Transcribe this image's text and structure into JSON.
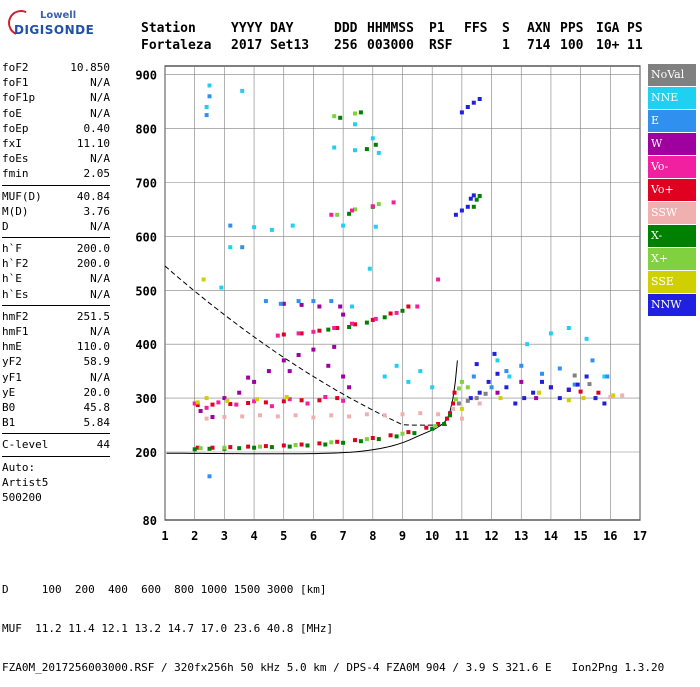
{
  "logo": {
    "line1": "Lowell",
    "line2": "DIGISONDE"
  },
  "header": {
    "row1": [
      "Station",
      "YYYY",
      "DAY",
      "DDD",
      "HHMMSS",
      "P1",
      "FFS",
      "S",
      "AXN",
      "PPS",
      "IGA",
      "PS"
    ],
    "row2": [
      "Fortaleza",
      "2017",
      "Set13",
      "256",
      "003000",
      "RSF",
      "",
      "1",
      "714",
      "100",
      "10+",
      "11"
    ]
  },
  "params": [
    {
      "k": "foF2",
      "v": "10.850"
    },
    {
      "k": "foF1",
      "v": "N/A"
    },
    {
      "k": "foF1p",
      "v": "N/A"
    },
    {
      "k": "foE",
      "v": "N/A"
    },
    {
      "k": "foEp",
      "v": "0.40"
    },
    {
      "k": "fxI",
      "v": "11.10"
    },
    {
      "k": "foEs",
      "v": "N/A"
    },
    {
      "k": "fmin",
      "v": "2.05"
    },
    {
      "sep": true
    },
    {
      "k": "MUF(D)",
      "v": "40.84"
    },
    {
      "k": "M(D)",
      "v": "3.76"
    },
    {
      "k": "D",
      "v": "N/A"
    },
    {
      "sep": true
    },
    {
      "k": "h`F",
      "v": "200.0"
    },
    {
      "k": "h`F2",
      "v": "200.0"
    },
    {
      "k": "h`E",
      "v": "N/A"
    },
    {
      "k": "h`Es",
      "v": "N/A"
    },
    {
      "sep": true
    },
    {
      "k": "hmF2",
      "v": "251.5"
    },
    {
      "k": "hmF1",
      "v": "N/A"
    },
    {
      "k": "hmE",
      "v": "110.0"
    },
    {
      "k": "yF2",
      "v": "58.9"
    },
    {
      "k": "yF1",
      "v": "N/A"
    },
    {
      "k": "yE",
      "v": "20.0"
    },
    {
      "k": "B0",
      "v": "45.8"
    },
    {
      "k": "B1",
      "v": "5.84"
    },
    {
      "sep": true
    },
    {
      "k": "C-level",
      "v": "44"
    },
    {
      "sep": true
    },
    {
      "k": "Auto:",
      "v": ""
    },
    {
      "k": "Artist5",
      "v": ""
    },
    {
      "k": "500200",
      "v": ""
    }
  ],
  "legend": [
    {
      "label": "NoVal",
      "color": "#808080"
    },
    {
      "label": "NNE",
      "color": "#20d0f0"
    },
    {
      "label": "E",
      "color": "#3090f0"
    },
    {
      "label": "W",
      "color": "#a000a0"
    },
    {
      "label": "Vo-",
      "color": "#f020a0"
    },
    {
      "label": "Vo+",
      "color": "#e00020"
    },
    {
      "label": "SSW",
      "color": "#f0b0b0"
    },
    {
      "label": "X-",
      "color": "#008000"
    },
    {
      "label": "X+",
      "color": "#80d040"
    },
    {
      "label": "SSE",
      "color": "#d0d000"
    },
    {
      "label": "NNW",
      "color": "#2020e0"
    }
  ],
  "footer": {
    "line1": "D     100  200  400  600  800 1000 1500 3000 [km]",
    "line2": "MUF  11.2 11.4 12.1 13.2 14.7 17.0 23.6 40.8 [MHz]",
    "line3": "FZA0M_2017256003000.RSF / 320fx256h 50 kHz 5.0 km / DPS-4 FZA0M 904 / 3.9 S 321.6 E   Ion2Png 1.3.20"
  },
  "chart_data": {
    "type": "scatter",
    "xlim": [
      1,
      17
    ],
    "ylim": [
      80,
      900
    ],
    "x_ticks": [
      1,
      2,
      3,
      4,
      5,
      6,
      7,
      8,
      9,
      10,
      11,
      12,
      13,
      14,
      15,
      16,
      17
    ],
    "y_ticks": [
      80,
      200,
      300,
      400,
      500,
      600,
      700,
      800,
      900
    ],
    "grid": true,
    "series": [
      {
        "name": "Vo+",
        "color": "#e00020",
        "points": [
          [
            2.1,
            208
          ],
          [
            2.6,
            208
          ],
          [
            3.2,
            209
          ],
          [
            3.8,
            210
          ],
          [
            4.4,
            211
          ],
          [
            5.0,
            212
          ],
          [
            5.6,
            214
          ],
          [
            6.2,
            216
          ],
          [
            6.8,
            219
          ],
          [
            7.4,
            222
          ],
          [
            8.0,
            226
          ],
          [
            8.6,
            231
          ],
          [
            9.2,
            237
          ],
          [
            9.8,
            245
          ],
          [
            10.2,
            252
          ],
          [
            10.5,
            262
          ],
          [
            10.6,
            272
          ],
          [
            10.7,
            290
          ],
          [
            10.75,
            310
          ],
          [
            2.1,
            287
          ],
          [
            2.6,
            288
          ],
          [
            3.2,
            289
          ],
          [
            3.8,
            291
          ],
          [
            4.4,
            292
          ],
          [
            5.0,
            294
          ],
          [
            5.6,
            296
          ],
          [
            6.2,
            296
          ],
          [
            6.8,
            300
          ],
          [
            5.0,
            418
          ],
          [
            5.6,
            420
          ],
          [
            6.2,
            425
          ],
          [
            6.8,
            430
          ],
          [
            7.4,
            437
          ],
          [
            8.0,
            445
          ],
          [
            8.6,
            457
          ],
          [
            9.2,
            470
          ],
          [
            14.0,
            320
          ],
          [
            15.0,
            312
          ],
          [
            15.6,
            310
          ]
        ]
      },
      {
        "name": "X-",
        "color": "#008000",
        "points": [
          [
            2.0,
            205
          ],
          [
            2.5,
            206
          ],
          [
            3.0,
            206
          ],
          [
            3.5,
            207
          ],
          [
            4.0,
            208
          ],
          [
            4.6,
            209
          ],
          [
            5.2,
            210
          ],
          [
            5.8,
            212
          ],
          [
            6.4,
            214
          ],
          [
            7.0,
            217
          ],
          [
            7.6,
            220
          ],
          [
            8.2,
            224
          ],
          [
            8.8,
            229
          ],
          [
            9.4,
            235
          ],
          [
            10.0,
            243
          ],
          [
            10.4,
            252
          ],
          [
            10.6,
            268
          ],
          [
            6.5,
            427
          ],
          [
            7.2,
            432
          ],
          [
            7.8,
            440
          ],
          [
            8.4,
            450
          ],
          [
            9.0,
            462
          ],
          [
            11.4,
            655
          ],
          [
            11.5,
            668
          ],
          [
            11.6,
            675
          ],
          [
            7.2,
            642
          ],
          [
            8.0,
            655
          ],
          [
            7.8,
            762
          ],
          [
            8.1,
            770
          ],
          [
            6.9,
            820
          ],
          [
            7.6,
            830
          ]
        ]
      },
      {
        "name": "X+",
        "color": "#80d040",
        "points": [
          [
            2.2,
            207
          ],
          [
            3.0,
            208
          ],
          [
            4.2,
            210
          ],
          [
            5.4,
            213
          ],
          [
            6.6,
            218
          ],
          [
            7.8,
            224
          ],
          [
            9.0,
            234
          ],
          [
            10.1,
            248
          ],
          [
            10.8,
            298
          ],
          [
            10.9,
            318
          ],
          [
            11.0,
            330
          ],
          [
            11.2,
            320
          ],
          [
            6.8,
            640
          ],
          [
            7.4,
            650
          ],
          [
            8.2,
            660
          ],
          [
            6.7,
            823
          ],
          [
            7.4,
            828
          ]
        ]
      },
      {
        "name": "Vo-",
        "color": "#f020a0",
        "points": [
          [
            2.0,
            290
          ],
          [
            2.4,
            282
          ],
          [
            2.8,
            292
          ],
          [
            3.4,
            288
          ],
          [
            4.0,
            294
          ],
          [
            4.6,
            285
          ],
          [
            5.2,
            298
          ],
          [
            5.8,
            290
          ],
          [
            6.4,
            302
          ],
          [
            7.0,
            295
          ],
          [
            4.8,
            416
          ],
          [
            5.5,
            420
          ],
          [
            6.0,
            423
          ],
          [
            6.7,
            430
          ],
          [
            7.3,
            438
          ],
          [
            8.1,
            447
          ],
          [
            8.8,
            458
          ],
          [
            9.5,
            470
          ],
          [
            10.2,
            520
          ],
          [
            6.6,
            640
          ],
          [
            7.3,
            648
          ],
          [
            8.0,
            656
          ],
          [
            8.7,
            663
          ]
        ]
      },
      {
        "name": "W",
        "color": "#a000a0",
        "points": [
          [
            2.2,
            276
          ],
          [
            2.6,
            265
          ],
          [
            3.0,
            300
          ],
          [
            3.5,
            310
          ],
          [
            4.0,
            330
          ],
          [
            4.5,
            350
          ],
          [
            5.0,
            370
          ],
          [
            5.5,
            380
          ],
          [
            6.0,
            390
          ],
          [
            6.5,
            360
          ],
          [
            7.0,
            340
          ],
          [
            7.2,
            320
          ],
          [
            5.0,
            475
          ],
          [
            5.6,
            473
          ],
          [
            6.2,
            470
          ],
          [
            6.9,
            470
          ],
          [
            7.0,
            455
          ],
          [
            3.8,
            338
          ],
          [
            5.2,
            350
          ],
          [
            6.7,
            395
          ],
          [
            12.2,
            310
          ],
          [
            13.0,
            330
          ],
          [
            13.5,
            300
          ],
          [
            14.6,
            316
          ]
        ]
      },
      {
        "name": "SSW",
        "color": "#f0b0b0",
        "points": [
          [
            2.4,
            262
          ],
          [
            3.0,
            265
          ],
          [
            3.6,
            266
          ],
          [
            4.2,
            268
          ],
          [
            4.8,
            266
          ],
          [
            5.4,
            268
          ],
          [
            6.0,
            264
          ],
          [
            6.6,
            268
          ],
          [
            7.2,
            266
          ],
          [
            7.8,
            270
          ],
          [
            8.4,
            268
          ],
          [
            9.0,
            270
          ],
          [
            9.6,
            272
          ],
          [
            10.2,
            270
          ],
          [
            10.7,
            280
          ],
          [
            11.0,
            262
          ],
          [
            11.6,
            290
          ],
          [
            15.5,
            300
          ],
          [
            16.0,
            302
          ],
          [
            16.4,
            305
          ]
        ]
      },
      {
        "name": "NNE",
        "color": "#20d0f0",
        "points": [
          [
            8.4,
            340
          ],
          [
            8.8,
            360
          ],
          [
            9.2,
            330
          ],
          [
            9.6,
            350
          ],
          [
            10.0,
            320
          ],
          [
            12.2,
            370
          ],
          [
            12.6,
            340
          ],
          [
            13.2,
            400
          ],
          [
            14.0,
            420
          ],
          [
            14.6,
            430
          ],
          [
            15.2,
            410
          ],
          [
            15.8,
            340
          ],
          [
            7.3,
            470
          ],
          [
            7.9,
            540
          ],
          [
            6.7,
            765
          ],
          [
            7.4,
            760
          ],
          [
            8.0,
            782
          ],
          [
            8.2,
            755
          ],
          [
            7.4,
            808
          ],
          [
            8.1,
            618
          ],
          [
            4.0,
            617
          ],
          [
            4.6,
            612
          ],
          [
            5.3,
            620
          ],
          [
            7.0,
            620
          ],
          [
            2.4,
            840
          ],
          [
            2.5,
            880
          ],
          [
            2.9,
            505
          ],
          [
            3.2,
            580
          ],
          [
            3.6,
            870
          ]
        ]
      },
      {
        "name": "E",
        "color": "#3090f0",
        "points": [
          [
            11.4,
            340
          ],
          [
            12.0,
            320
          ],
          [
            12.5,
            350
          ],
          [
            13.0,
            360
          ],
          [
            13.7,
            345
          ],
          [
            14.3,
            355
          ],
          [
            14.8,
            325
          ],
          [
            15.4,
            370
          ],
          [
            15.9,
            340
          ],
          [
            2.4,
            825
          ],
          [
            2.5,
            860
          ],
          [
            3.2,
            620
          ],
          [
            3.6,
            580
          ],
          [
            4.4,
            480
          ],
          [
            4.9,
            475
          ],
          [
            5.5,
            480
          ],
          [
            6.0,
            480
          ],
          [
            6.6,
            480
          ],
          [
            2.5,
            155
          ]
        ]
      },
      {
        "name": "NNW",
        "color": "#2020e0",
        "points": [
          [
            11.3,
            300
          ],
          [
            11.6,
            310
          ],
          [
            11.9,
            330
          ],
          [
            12.2,
            345
          ],
          [
            12.5,
            320
          ],
          [
            12.8,
            290
          ],
          [
            13.1,
            300
          ],
          [
            13.4,
            310
          ],
          [
            13.7,
            330
          ],
          [
            14.0,
            320
          ],
          [
            14.3,
            300
          ],
          [
            14.6,
            315
          ],
          [
            14.9,
            325
          ],
          [
            15.2,
            340
          ],
          [
            15.5,
            300
          ],
          [
            15.8,
            290
          ],
          [
            11.5,
            363
          ],
          [
            12.1,
            382
          ],
          [
            11.0,
            830
          ],
          [
            11.2,
            840
          ],
          [
            11.4,
            848
          ],
          [
            11.6,
            855
          ],
          [
            10.8,
            640
          ],
          [
            11.0,
            648
          ],
          [
            11.2,
            655
          ],
          [
            11.3,
            670
          ],
          [
            11.4,
            676
          ]
        ]
      },
      {
        "name": "SSE",
        "color": "#d0d000",
        "points": [
          [
            2.1,
            292
          ],
          [
            3.1,
            295
          ],
          [
            4.1,
            298
          ],
          [
            5.1,
            302
          ],
          [
            11.0,
            280
          ],
          [
            12.3,
            300
          ],
          [
            13.6,
            310
          ],
          [
            14.6,
            296
          ],
          [
            15.1,
            300
          ],
          [
            16.1,
            305
          ],
          [
            2.3,
            520
          ],
          [
            2.4,
            300
          ]
        ]
      },
      {
        "name": "NoVal",
        "color": "#808080",
        "points": [
          [
            10.9,
            290
          ],
          [
            11.2,
            295
          ],
          [
            11.5,
            300
          ],
          [
            11.8,
            308
          ],
          [
            14.8,
            342
          ],
          [
            15.3,
            326
          ]
        ]
      }
    ]
  }
}
